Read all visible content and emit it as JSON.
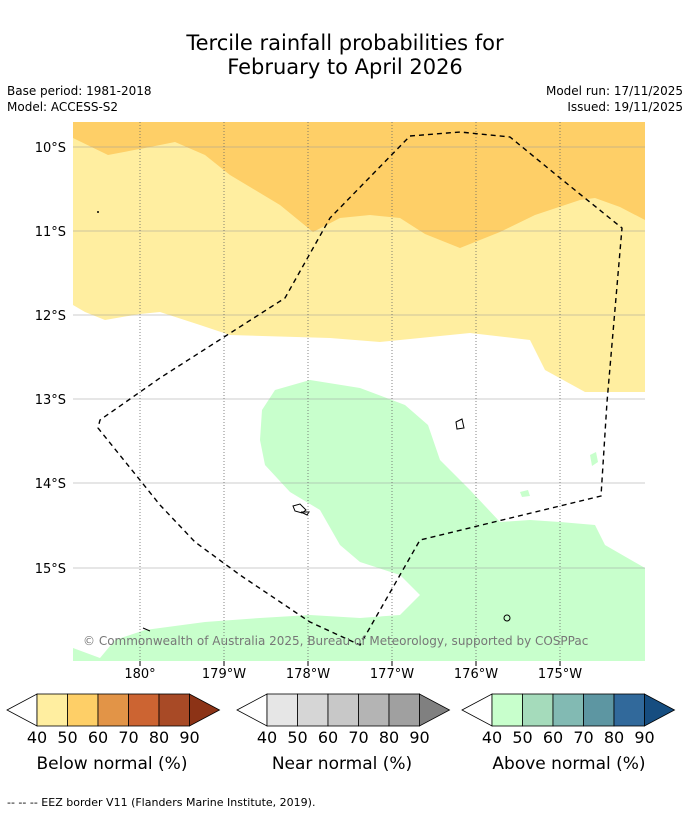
{
  "title_line1": "Tercile rainfall probabilities for",
  "title_line2": "February to April 2026",
  "base_period": "Base period: 1981-2018",
  "model": "Model: ACCESS-S2",
  "model_run": "Model run: 17/11/2025",
  "issued": "Issued: 19/11/2025",
  "lat_labels": [
    "10°S",
    "11°S",
    "12°S",
    "13°S",
    "14°S",
    "15°S"
  ],
  "lon_labels": [
    "180°",
    "179°W",
    "178°W",
    "177°W",
    "176°W",
    "175°W"
  ],
  "copyright": "© Commonwealth of Australia 2025, Bureau of Meteorology, supported by COSPPac",
  "colorbars": [
    {
      "title": "Below normal (%)",
      "ticks": [
        "40",
        "50",
        "60",
        "70",
        "80",
        "90"
      ],
      "colors": [
        "#ffeea0",
        "#fecf67",
        "#e29447",
        "#cc6432",
        "#a84a26",
        "#8c3316"
      ]
    },
    {
      "title": "Near normal (%)",
      "ticks": [
        "40",
        "50",
        "60",
        "70",
        "80",
        "90"
      ],
      "colors": [
        "#e6e6e6",
        "#d6d6d6",
        "#c8c8c8",
        "#b4b4b4",
        "#a0a0a0",
        "#808080"
      ]
    },
    {
      "title": "Above normal (%)",
      "ticks": [
        "40",
        "50",
        "60",
        "70",
        "80",
        "90"
      ],
      "colors": [
        "#c8ffcc",
        "#a5dbbb",
        "#82bab3",
        "#5d96a2",
        "#31699b",
        "#164d80"
      ]
    }
  ],
  "footnote": "--  --  -- EEZ border V11 (Flanders Marine Institute, 2019).",
  "colors": {
    "below_40": "#ffeea0",
    "below_50": "#fecf67",
    "above_40": "#c8ffcc",
    "grid": "#888888"
  }
}
